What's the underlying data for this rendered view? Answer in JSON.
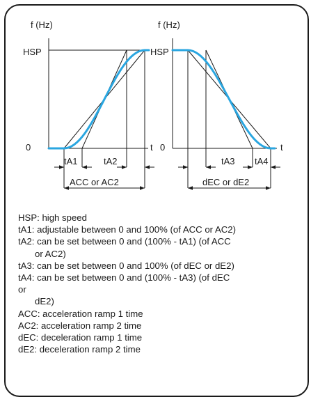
{
  "colors": {
    "ramp": "#2aa6e0",
    "line": "#1a1a1a",
    "background": "#ffffff"
  },
  "accel": {
    "y_label": "f (Hz)",
    "hsp_label": "HSP",
    "zero_label": "0",
    "t_label": "t",
    "ta1_label": "tA1",
    "ta2_label": "tA2",
    "total_label": "ACC or AC2"
  },
  "decel": {
    "y_label": "f (Hz)",
    "hsp_label": "HSP",
    "zero_label": "0",
    "t_label": "t",
    "ta3_label": "tA3",
    "ta4_label": "tA4",
    "total_label": "dEC or dE2"
  },
  "legend": [
    {
      "text": "HSP: high speed",
      "indent": false
    },
    {
      "text": "tA1: adjustable between 0 and 100% (of ACC or AC2)",
      "indent": false
    },
    {
      "text": "tA2: can be set between 0 and (100% - tA1) (of ACC",
      "indent": false
    },
    {
      "text": "or AC2)",
      "indent": true
    },
    {
      "text": "tA3: can be set between 0 and 100% (of dEC or dE2)",
      "indent": false
    },
    {
      "text": "tA4: can be set between 0 and (100% - tA3) (of dEC",
      "indent": false
    },
    {
      "text": "or",
      "indent": false
    },
    {
      "text": "dE2)",
      "indent": true
    },
    {
      "text": "ACC: acceleration ramp 1 time",
      "indent": false
    },
    {
      "text": "AC2: acceleration ramp 2 time",
      "indent": false
    },
    {
      "text": "dEC: deceleration ramp 1 time",
      "indent": false
    },
    {
      "text": "dE2: deceleration ramp 2 time",
      "indent": false
    }
  ]
}
